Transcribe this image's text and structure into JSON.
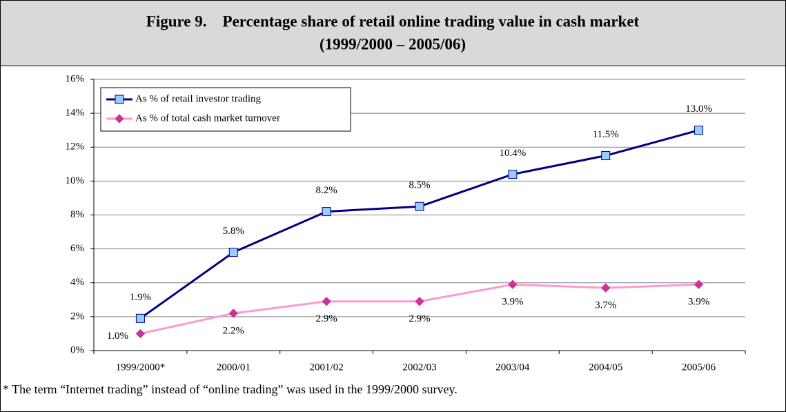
{
  "chart_data": {
    "type": "line",
    "title": [
      "Figure 9.    Percentage share of retail online trading value in cash market",
      "(1999/2000 – 2005/06)"
    ],
    "categories": [
      "1999/2000*",
      "2000/01",
      "2001/02",
      "2002/03",
      "2003/04",
      "2004/05",
      "2005/06"
    ],
    "series": [
      {
        "name": "As % of retail investor trading",
        "color": "#000080",
        "marker_color": "#99ccff",
        "marker": "square",
        "values": [
          1.9,
          5.8,
          8.2,
          8.5,
          10.4,
          11.5,
          13.0
        ],
        "value_labels": [
          "1.9%",
          "5.8%",
          "8.2%",
          "8.5%",
          "10.4%",
          "11.5%",
          "13.0%"
        ]
      },
      {
        "name": "As % of total cash market turnover",
        "color": "#ff99cc",
        "marker_color": "#cc3399",
        "marker": "diamond",
        "values": [
          1.0,
          2.2,
          2.9,
          2.9,
          3.9,
          3.7,
          3.9
        ],
        "value_labels": [
          "1.0%",
          "2.2%",
          "2.9%",
          "2.9%",
          "3.9%",
          "3.7%",
          "3.9%"
        ]
      }
    ],
    "ylim": [
      0,
      16
    ],
    "yticks": [
      {
        "value": 0,
        "label": "0%"
      },
      {
        "value": 2,
        "label": "2%"
      },
      {
        "value": 4,
        "label": "4%"
      },
      {
        "value": 6,
        "label": "6%"
      },
      {
        "value": 8,
        "label": "8%"
      },
      {
        "value": 10,
        "label": "10%"
      },
      {
        "value": 12,
        "label": "12%"
      },
      {
        "value": 14,
        "label": "14%"
      },
      {
        "value": 16,
        "label": "16%"
      }
    ],
    "grid": true,
    "legend": "upper left",
    "footnote": "* The term “Internet trading” instead of “online trading” was used in the 1999/2000 survey."
  }
}
